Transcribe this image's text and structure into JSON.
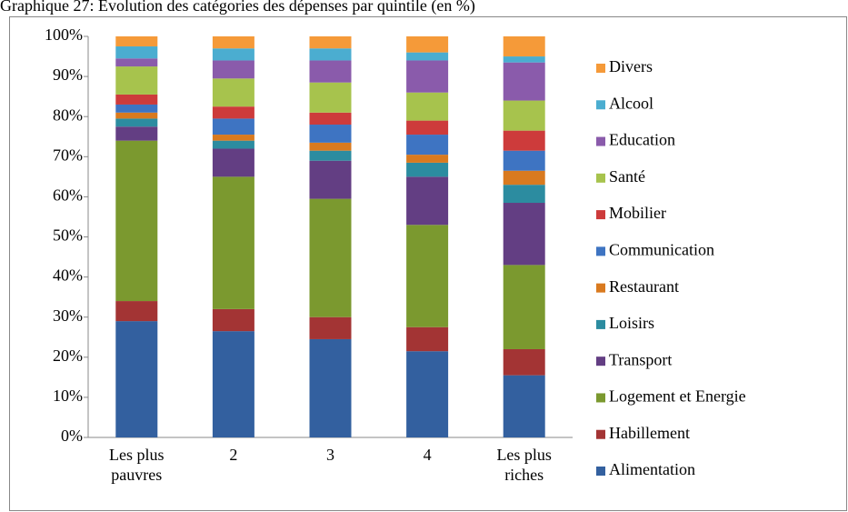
{
  "chart_data": {
    "type": "stacked_bar",
    "title": "Graphique 27: Evolution des catégories des dépenses par quintile (en %)",
    "categories": [
      "Les plus pauvres",
      "2",
      "3",
      "4",
      "Les plus riches"
    ],
    "series": [
      {
        "name": "Alimentation",
        "color": "#33609f",
        "values": [
          29,
          26.5,
          24.5,
          21.5,
          15.5
        ]
      },
      {
        "name": "Habillement",
        "color": "#a33434",
        "values": [
          5,
          5.5,
          5.5,
          6,
          6.5
        ]
      },
      {
        "name": "Logement et Energie",
        "color": "#7b992f",
        "values": [
          40,
          33,
          29.5,
          25.5,
          21
        ]
      },
      {
        "name": "Transport",
        "color": "#633e83",
        "values": [
          3.5,
          7,
          9.5,
          12,
          15.5
        ]
      },
      {
        "name": "Loisirs",
        "color": "#2c8ca0",
        "values": [
          2,
          2,
          2.5,
          3.5,
          4.5
        ]
      },
      {
        "name": "Restaurant",
        "color": "#d97a1f",
        "values": [
          1.5,
          1.5,
          2,
          2,
          3.5
        ]
      },
      {
        "name": "Communication",
        "color": "#3e74c2",
        "values": [
          2,
          4,
          4.5,
          5,
          5
        ]
      },
      {
        "name": "Mobilier",
        "color": "#cd3b3b",
        "values": [
          2.5,
          3,
          3,
          3.5,
          5
        ]
      },
      {
        "name": "Santé",
        "color": "#a7c34d",
        "values": [
          7,
          7,
          7.5,
          7,
          7.5
        ]
      },
      {
        "name": "Education",
        "color": "#8a5bab",
        "values": [
          2,
          4.5,
          5.5,
          8,
          9.5
        ]
      },
      {
        "name": "Alcool",
        "color": "#4badd0",
        "values": [
          3,
          3,
          3,
          2,
          1.5
        ]
      },
      {
        "name": "Divers",
        "color": "#f59a39",
        "values": [
          2.5,
          3,
          3,
          4,
          5
        ]
      }
    ],
    "ylim": [
      0,
      100
    ],
    "yticks": [
      {
        "value": 0,
        "label": "0%"
      },
      {
        "value": 10,
        "label": "10%"
      },
      {
        "value": 20,
        "label": "20%"
      },
      {
        "value": 30,
        "label": "30%"
      },
      {
        "value": 40,
        "label": "40%"
      },
      {
        "value": 50,
        "label": "50%"
      },
      {
        "value": 60,
        "label": "60%"
      },
      {
        "value": 70,
        "label": "70%"
      },
      {
        "value": 80,
        "label": "80%"
      },
      {
        "value": 90,
        "label": "90%"
      },
      {
        "value": 100,
        "label": "100%"
      }
    ],
    "legend": "right"
  }
}
